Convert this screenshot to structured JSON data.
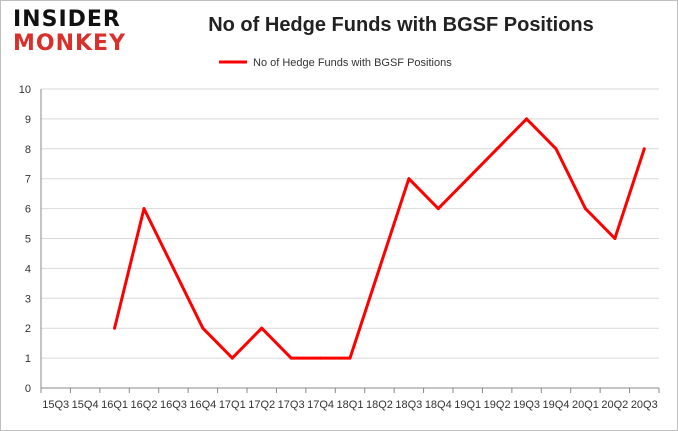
{
  "logo": {
    "line1": "INSIDER",
    "line2": "MONKEY"
  },
  "chart_data": {
    "type": "line",
    "title": "No of Hedge Funds with BGSF Positions",
    "xlabel": "",
    "ylabel": "",
    "ylim": [
      0,
      10
    ],
    "yticks": [
      0,
      1,
      2,
      3,
      4,
      5,
      6,
      7,
      8,
      9,
      10
    ],
    "grid": true,
    "legend_position": "top-center",
    "categories": [
      "15Q3",
      "15Q4",
      "16Q1",
      "16Q2",
      "16Q3",
      "16Q4",
      "17Q1",
      "17Q2",
      "17Q3",
      "17Q4",
      "18Q1",
      "18Q2",
      "18Q3",
      "18Q4",
      "19Q1",
      "19Q2",
      "19Q3",
      "19Q4",
      "20Q1",
      "20Q2",
      "20Q3"
    ],
    "series": [
      {
        "name": "No of Hedge Funds with BGSF Positions",
        "color": "#ff0000",
        "values": [
          null,
          null,
          2,
          6,
          4,
          2,
          1,
          2,
          1,
          1,
          1,
          4,
          7,
          6,
          7,
          8,
          9,
          8,
          6,
          5,
          8
        ]
      }
    ]
  }
}
